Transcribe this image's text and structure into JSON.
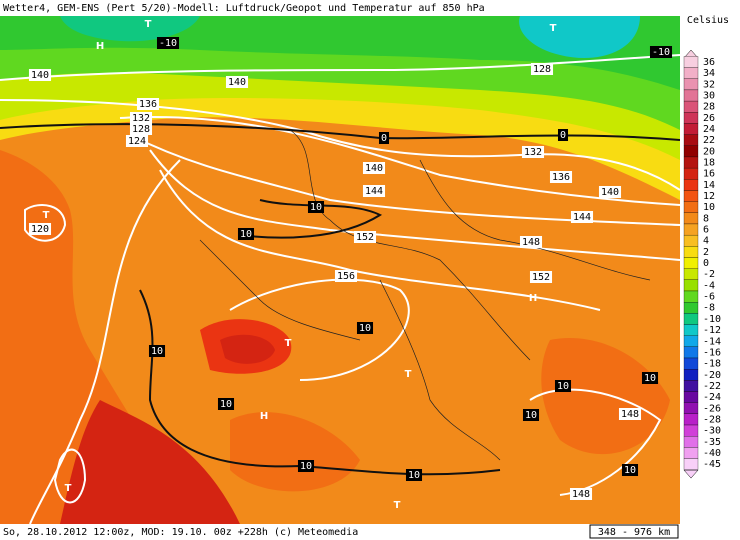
{
  "header": {
    "title": "Wetter4, GEM-ENS (Pert 5/20)-Modell: Luftdruck/Geopot und Temperatur auf 850 hPa"
  },
  "footer": {
    "info": "So, 28.10.2012 12:00z, MOD: 19.10. 00z +228h (c) Meteomedia",
    "scale": "348 - 976 km"
  },
  "legend": {
    "title": "Celsius",
    "entries": [
      {
        "label": "36",
        "color": "#f7cfe0"
      },
      {
        "label": "34",
        "color": "#f2b0c8"
      },
      {
        "label": "32",
        "color": "#ea92b0"
      },
      {
        "label": "30",
        "color": "#e27496"
      },
      {
        "label": "28",
        "color": "#da5478"
      },
      {
        "label": "26",
        "color": "#ce3458"
      },
      {
        "label": "24",
        "color": "#c21c36"
      },
      {
        "label": "22",
        "color": "#a80c12"
      },
      {
        "label": "20",
        "color": "#900000"
      },
      {
        "label": "18",
        "color": "#b41410"
      },
      {
        "label": "16",
        "color": "#d42412"
      },
      {
        "label": "14",
        "color": "#ea3412"
      },
      {
        "label": "12",
        "color": "#f25412"
      },
      {
        "label": "10",
        "color": "#f26e14"
      },
      {
        "label": "8",
        "color": "#f28a1a"
      },
      {
        "label": "6",
        "color": "#f5a222"
      },
      {
        "label": "4",
        "color": "#f8be22"
      },
      {
        "label": "2",
        "color": "#f8dc12"
      },
      {
        "label": "0",
        "color": "#f0f000"
      },
      {
        "label": "-2",
        "color": "#c8e800"
      },
      {
        "label": "-4",
        "color": "#98e000"
      },
      {
        "label": "-6",
        "color": "#60d820"
      },
      {
        "label": "-8",
        "color": "#30c830"
      },
      {
        "label": "-10",
        "color": "#10c880"
      },
      {
        "label": "-12",
        "color": "#10c8c8"
      },
      {
        "label": "-14",
        "color": "#10a8e8"
      },
      {
        "label": "-16",
        "color": "#1078e8"
      },
      {
        "label": "-18",
        "color": "#1048d8"
      },
      {
        "label": "-20",
        "color": "#1020c0"
      },
      {
        "label": "-22",
        "color": "#4010a0"
      },
      {
        "label": "-24",
        "color": "#6808a0"
      },
      {
        "label": "-26",
        "color": "#9010b0"
      },
      {
        "label": "-28",
        "color": "#b820c8"
      },
      {
        "label": "-30",
        "color": "#d040d8"
      },
      {
        "label": "-35",
        "color": "#e070e8"
      },
      {
        "label": "-40",
        "color": "#f0a0f0"
      },
      {
        "label": "-45",
        "color": "#f8d0f8"
      }
    ]
  },
  "map": {
    "labels": [
      "H",
      "T",
      "-10",
      "140",
      "140",
      "128",
      "-10",
      "T",
      "136",
      "132",
      "128",
      "124",
      "0",
      "0",
      "132",
      "140",
      "136",
      "144",
      "140",
      "10",
      "T",
      "120",
      "144",
      "10",
      "152",
      "148",
      "156",
      "152",
      "H",
      "10",
      "T",
      "10",
      "T",
      "10",
      "10",
      "10",
      "H",
      "10",
      "148",
      "10",
      "10",
      "10",
      "148",
      "T",
      "T"
    ]
  }
}
